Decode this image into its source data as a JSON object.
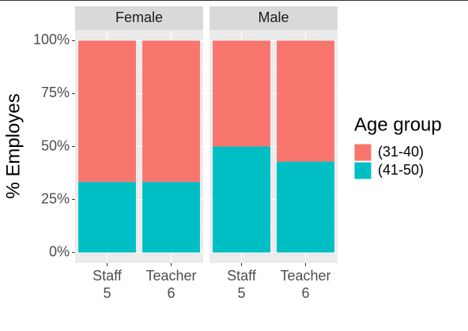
{
  "chart_data": {
    "type": "bar",
    "stacked": true,
    "y_label": "% Employes",
    "legend_title": "Age group",
    "legend_position": "right",
    "series": [
      {
        "name": "(31-40)",
        "color": "#F8766D"
      },
      {
        "name": "(41-50)",
        "color": "#00BFC4"
      }
    ],
    "panels": [
      {
        "title": "Female",
        "categories": [
          "Staff",
          "Teacher"
        ],
        "counts": [
          5,
          6
        ],
        "series_values": [
          [
            66.7,
            66.7
          ],
          [
            33.3,
            33.3
          ]
        ]
      },
      {
        "title": "Male",
        "categories": [
          "Staff",
          "Teacher"
        ],
        "counts": [
          5,
          6
        ],
        "series_values": [
          [
            50,
            57.1
          ],
          [
            50,
            42.9
          ]
        ]
      }
    ],
    "ylim": [
      -5,
      105
    ],
    "yticks": [
      {
        "value": 0,
        "label": "0%"
      },
      {
        "value": 25,
        "label": "25%"
      },
      {
        "value": 50,
        "label": "50%"
      },
      {
        "value": 75,
        "label": "75%"
      },
      {
        "value": 100,
        "label": "100%"
      }
    ],
    "grid": true
  }
}
